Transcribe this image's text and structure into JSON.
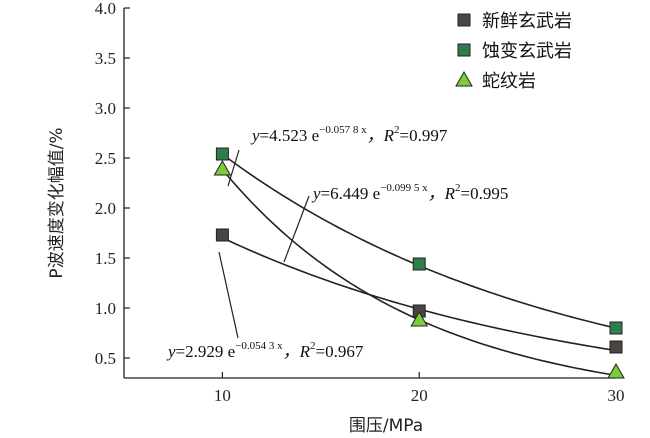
{
  "chart_data": {
    "type": "scatter",
    "xlabel": "围压/MPa",
    "ylabel": "P波速度变化幅值/%",
    "xlim": [
      5,
      30
    ],
    "ylim": [
      0.3,
      4.0
    ],
    "x_ticks": [
      "10",
      "20",
      "30"
    ],
    "y_ticks": [
      "0.5",
      "1.0",
      "1.5",
      "2.0",
      "2.5",
      "3.0",
      "3.5",
      "4.0"
    ],
    "legend_position": "top-right",
    "series": [
      {
        "name": "新鲜玄武岩",
        "marker": "square",
        "color": "#4b4542",
        "x": [
          10,
          20,
          30
        ],
        "y": [
          1.73,
          0.97,
          0.61
        ],
        "fit": {
          "a": 2.929,
          "b": -0.0543
        }
      },
      {
        "name": "蚀变玄武岩",
        "marker": "square",
        "color": "#2e7d4a",
        "x": [
          10,
          20,
          30
        ],
        "y": [
          2.54,
          1.44,
          0.8
        ],
        "fit": {
          "a": 4.523,
          "b": -0.0578
        }
      },
      {
        "name": "蛇纹岩",
        "marker": "triangle",
        "color": "#7ccc3a",
        "x": [
          10,
          20,
          30
        ],
        "y": [
          2.39,
          0.88,
          0.36
        ],
        "fit": {
          "a": 6.449,
          "b": -0.0995
        }
      }
    ],
    "annotations": [
      {
        "id": "eq-altered",
        "y_label": "y",
        "coef": "=4.523 e",
        "exp": "−0.057 8 x",
        "r_label": "，R",
        "r_sup": "2",
        "r_val": "=0.997"
      },
      {
        "id": "eq-serp",
        "y_label": "y",
        "coef": "=6.449 e",
        "exp": "−0.099 5 x",
        "r_label": "，R",
        "r_sup": "2",
        "r_val": "=0.995"
      },
      {
        "id": "eq-fresh",
        "y_label": "y",
        "coef": "=2.929 e",
        "exp": "−0.054 3 x",
        "r_label": "，R",
        "r_sup": "2",
        "r_val": "=0.967"
      }
    ]
  }
}
